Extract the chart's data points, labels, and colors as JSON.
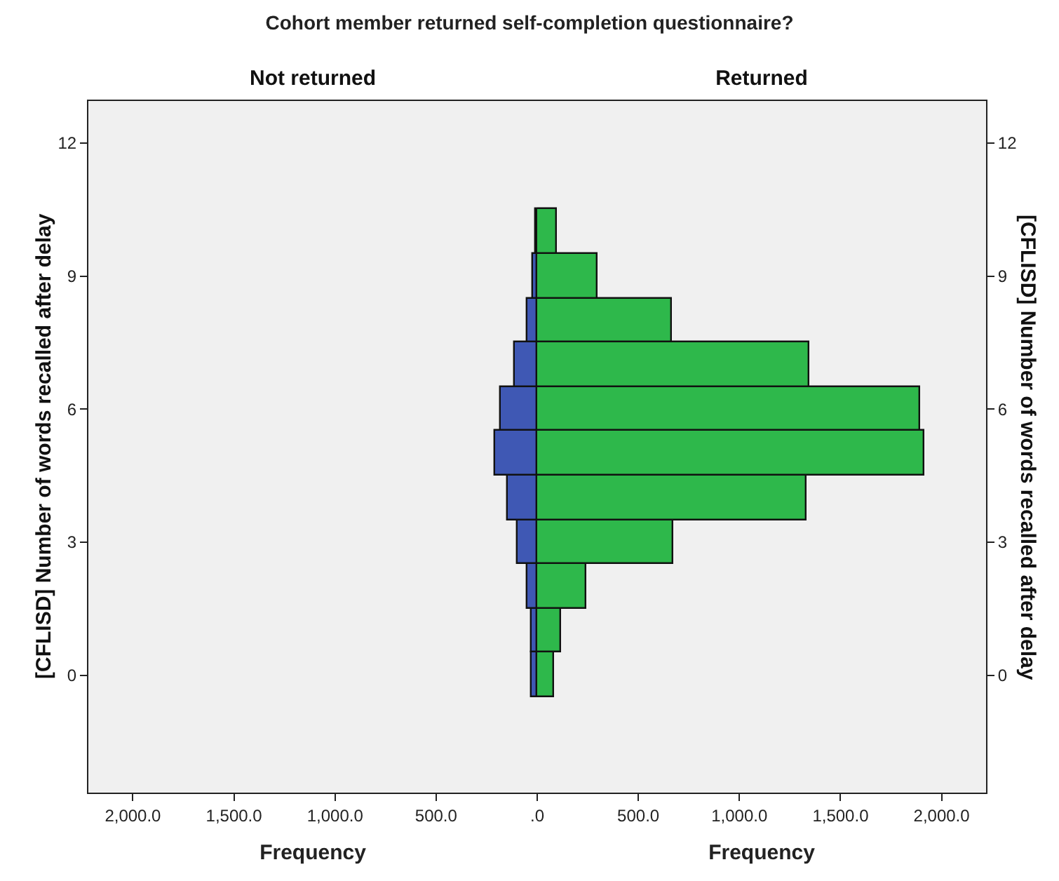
{
  "chart_data": [
    {
      "type": "histogram",
      "orientation": "horizontal",
      "title": "Cohort member returned self-completion questionnaire?",
      "subtitle": "Not returned",
      "xlabel": "Frequency",
      "ylabel": "[CFLISD] Number of words recalled after delay",
      "color": "#3f58b4",
      "bins": [
        -0.5,
        0.5,
        1.5,
        2.5,
        3.5,
        4.5,
        5.5,
        6.5,
        7.5,
        8.5,
        9.5,
        10.5
      ],
      "values": [
        30,
        26,
        51,
        95,
        144,
        206,
        182,
        113,
        50,
        19,
        5
      ],
      "xlim": [
        2220,
        0
      ],
      "xticks": [
        {
          "value": 2000,
          "label": "2,000.0"
        },
        {
          "value": 1500,
          "label": "1,500.0"
        },
        {
          "value": 1000,
          "label": "1,000.0"
        },
        {
          "value": 500,
          "label": "500.0"
        },
        {
          "value": 0,
          "label": ".0"
        }
      ],
      "ylim": [
        -2.65,
        12.95
      ],
      "yticks": [
        0,
        3,
        6,
        9,
        12
      ],
      "grid": false
    },
    {
      "type": "histogram",
      "orientation": "horizontal",
      "subtitle": "Returned",
      "xlabel": "Frequency",
      "y2label": "[CFLISD] Number of words recalled after delay",
      "color": "#2eb84b",
      "bins": [
        -0.5,
        0.5,
        1.5,
        2.5,
        3.5,
        4.5,
        5.5,
        6.5,
        7.5,
        8.5,
        9.5,
        10.5
      ],
      "values": [
        80,
        118,
        245,
        670,
        1329,
        1912,
        1891,
        1345,
        664,
        298,
        100
      ],
      "xlim": [
        0,
        2220
      ],
      "xticks": [
        {
          "value": 500,
          "label": "500.0"
        },
        {
          "value": 1000,
          "label": "1,000.0"
        },
        {
          "value": 1500,
          "label": "1,500.0"
        },
        {
          "value": 2000,
          "label": "2,000.0"
        }
      ],
      "ylim": [
        -2.65,
        12.95
      ],
      "yticks": [
        0,
        3,
        6,
        9,
        12
      ],
      "grid": false
    }
  ]
}
